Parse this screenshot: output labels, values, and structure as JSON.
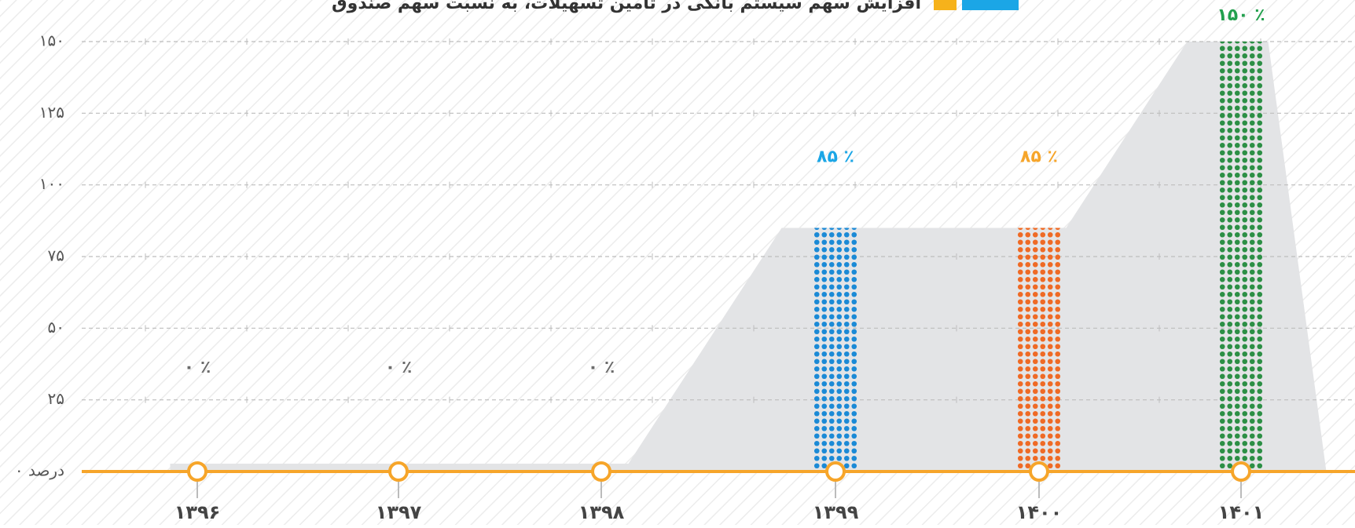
{
  "chart_data": {
    "type": "bar",
    "title": "افزایش سهم سیستم بانکی در تامین تسهیلات، به نسبت سهم صندوق",
    "categories": [
      "۱۳۹۶",
      "۱۳۹۷",
      "۱۳۹۸",
      "۱۳۹۹",
      "۱۴۰۰",
      "۱۴۰۱"
    ],
    "values": [
      0,
      0,
      0,
      85,
      85,
      150
    ],
    "value_labels": [
      "۰ ٪",
      "۰ ٪",
      "۰ ٪",
      "۸۵ ٪",
      "۸۵ ٪",
      "۱۵۰ ٪"
    ],
    "colors": [
      "#8c8c8c",
      "#8c8c8c",
      "#8c8c8c",
      "#1b8ad6",
      "#ef6a25",
      "#2c8f45"
    ],
    "label_colors": [
      "#6b6b6b",
      "#6b6b6b",
      "#6b6b6b",
      "#1ba6e6",
      "#f6a52a",
      "#23a04e"
    ],
    "ylim": [
      0,
      150
    ],
    "yticks": [
      {
        "value": 0,
        "label": "۰ درصد"
      },
      {
        "value": 25,
        "label": "۲۵"
      },
      {
        "value": 50,
        "label": "۵۰"
      },
      {
        "value": 75,
        "label": "۷۵"
      },
      {
        "value": 100,
        "label": "۱۰۰"
      },
      {
        "value": 125,
        "label": "۱۲۵"
      },
      {
        "value": 150,
        "label": "۱۵۰"
      }
    ],
    "grid": true
  }
}
